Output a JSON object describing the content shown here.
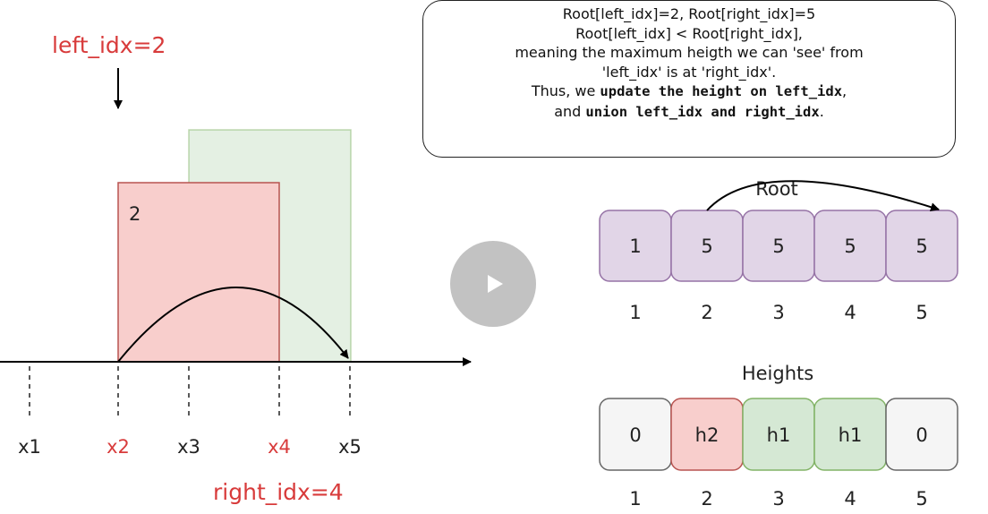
{
  "pointers": {
    "left": "left_idx=2",
    "right": "right_idx=4"
  },
  "x_ticks": [
    "x1",
    "x2",
    "x3",
    "x4",
    "x5"
  ],
  "rect_label": "2",
  "note": {
    "line1": "Root[left_idx]=2, Root[right_idx]=5",
    "line2": "Root[left_idx] < Root[right_idx],",
    "line3": "meaning the maximum heigth we can 'see' from",
    "line4": "'left_idx' is at 'right_idx'.",
    "line5a": "Thus, we ",
    "line5b": "update the height on left_idx",
    "line5c": ",",
    "line6a": "and ",
    "line6b": "union left_idx and right_idx",
    "line6c": "."
  },
  "root": {
    "title": "Root",
    "values": [
      "1",
      "5",
      "5",
      "5",
      "5"
    ],
    "indices": [
      "1",
      "2",
      "3",
      "4",
      "5"
    ]
  },
  "heights": {
    "title": "Heights",
    "values": [
      "0",
      "h2",
      "h1",
      "h1",
      "0"
    ],
    "indices": [
      "1",
      "2",
      "3",
      "4",
      "5"
    ]
  },
  "colors": {
    "red_text": "#d83b3b",
    "red_fill": "#f8cecc",
    "red_stroke": "#b85450",
    "green_fill": "#d5e8d4",
    "green_stroke": "#82b366",
    "purple_fill": "#e1d5e7",
    "purple_stroke": "#9673a6",
    "gray_fill": "#f5f5f5",
    "gray_stroke": "#666666"
  }
}
